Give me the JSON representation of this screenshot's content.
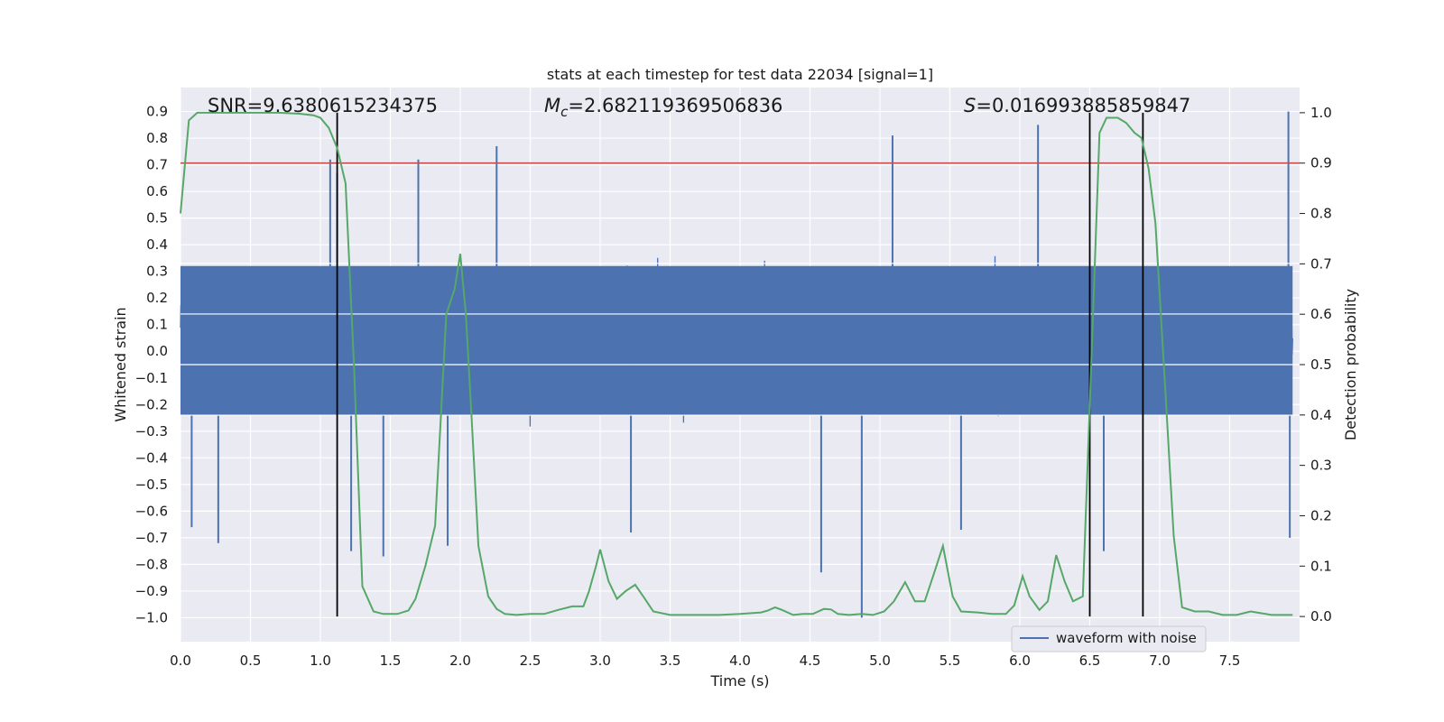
{
  "chart_data": {
    "type": "line",
    "title": "stats at each timestep for test data 22034 [signal=1]",
    "xlabel": "Time (s)",
    "ylabel": "Whitened strain",
    "y2label": "Detection probability",
    "xlim": [
      0.0,
      8.0
    ],
    "ylim": [
      -1.09,
      0.99
    ],
    "y2lim": [
      -0.05,
      1.05
    ],
    "xticks": [
      "0.0",
      "0.5",
      "1.0",
      "1.5",
      "2.0",
      "2.5",
      "3.0",
      "3.5",
      "4.0",
      "4.5",
      "5.0",
      "5.5",
      "6.0",
      "6.5",
      "7.0",
      "7.5"
    ],
    "yticks": [
      "0.9",
      "0.8",
      "0.7",
      "0.6",
      "0.5",
      "0.4",
      "0.3",
      "0.2",
      "0.1",
      "0.0",
      "-0.1",
      "-0.2",
      "-0.3",
      "-0.4",
      "-0.5",
      "-0.6",
      "-0.7",
      "-0.8",
      "-0.9",
      "-1.0"
    ],
    "y2ticks": [
      "1.0",
      "0.9",
      "0.8",
      "0.7",
      "0.6",
      "0.5",
      "0.4",
      "0.3",
      "0.2",
      "0.1",
      "0.0"
    ],
    "annotations": {
      "snr": "SNR=9.6380615234375",
      "mc_value": "=2.682119369506836",
      "s_value": "=0.016993885859847",
      "mc_symbol": "M",
      "mc_sub": "c",
      "s_symbol": "S"
    },
    "legend": {
      "label": "waveform with noise",
      "location": "lower-right"
    },
    "threshold": {
      "axis": "y2",
      "value": 0.9,
      "color": "#c44e52"
    },
    "vertical_lines": [
      1.12,
      6.5,
      6.88
    ],
    "waveform": {
      "name": "waveform with noise",
      "color": "#4c72b0",
      "duration_s": 7.95,
      "envelope_core": [
        -0.24,
        0.32
      ],
      "peaks": [
        {
          "t": 1.07,
          "v": 0.72
        },
        {
          "t": 1.12,
          "v": 0.67
        },
        {
          "t": 1.22,
          "v": -0.75
        },
        {
          "t": 1.45,
          "v": -0.77
        },
        {
          "t": 1.7,
          "v": 0.72
        },
        {
          "t": 1.91,
          "v": -0.73
        },
        {
          "t": 2.26,
          "v": 0.77
        },
        {
          "t": 3.22,
          "v": -0.68
        },
        {
          "t": 4.58,
          "v": -0.83
        },
        {
          "t": 4.87,
          "v": -1.0
        },
        {
          "t": 5.09,
          "v": 0.81
        },
        {
          "t": 6.13,
          "v": 0.85
        },
        {
          "t": 7.92,
          "v": 0.9
        },
        {
          "t": 7.93,
          "v": -0.7
        },
        {
          "t": 0.27,
          "v": -0.72
        },
        {
          "t": 0.08,
          "v": -0.66
        },
        {
          "t": 5.58,
          "v": -0.67
        },
        {
          "t": 6.6,
          "v": -0.75
        }
      ]
    },
    "detection_probability": {
      "name": "detection probability",
      "color": "#55a868",
      "x": [
        0.0,
        0.06,
        0.12,
        0.3,
        0.5,
        0.7,
        0.85,
        0.95,
        1.0,
        1.06,
        1.12,
        1.18,
        1.24,
        1.3,
        1.38,
        1.45,
        1.55,
        1.63,
        1.68,
        1.75,
        1.82,
        1.9,
        1.96,
        2.0,
        2.04,
        2.08,
        2.13,
        2.2,
        2.26,
        2.32,
        2.4,
        2.5,
        2.6,
        2.7,
        2.8,
        2.88,
        2.92,
        2.97,
        3.0,
        3.06,
        3.12,
        3.18,
        3.25,
        3.32,
        3.38,
        3.5,
        3.7,
        3.85,
        4.0,
        4.15,
        4.2,
        4.25,
        4.3,
        4.38,
        4.45,
        4.52,
        4.6,
        4.65,
        4.7,
        4.78,
        4.87,
        4.95,
        5.03,
        5.1,
        5.18,
        5.25,
        5.32,
        5.38,
        5.45,
        5.52,
        5.58,
        5.7,
        5.8,
        5.9,
        5.96,
        6.02,
        6.07,
        6.14,
        6.2,
        6.26,
        6.32,
        6.38,
        6.45,
        6.5,
        6.57,
        6.62,
        6.7,
        6.76,
        6.82,
        6.87,
        6.92,
        6.97,
        7.04,
        7.1,
        7.16,
        7.25,
        7.35,
        7.45,
        7.55,
        7.65,
        7.8,
        7.95
      ],
      "y": [
        0.8,
        0.985,
        1.0,
        1.0,
        1.0,
        1.0,
        0.998,
        0.995,
        0.99,
        0.97,
        0.93,
        0.86,
        0.5,
        0.06,
        0.01,
        0.005,
        0.005,
        0.012,
        0.035,
        0.1,
        0.18,
        0.6,
        0.65,
        0.72,
        0.6,
        0.4,
        0.14,
        0.04,
        0.015,
        0.005,
        0.003,
        0.005,
        0.005,
        0.013,
        0.02,
        0.02,
        0.05,
        0.1,
        0.133,
        0.07,
        0.035,
        0.05,
        0.063,
        0.035,
        0.01,
        0.003,
        0.003,
        0.003,
        0.005,
        0.008,
        0.012,
        0.018,
        0.013,
        0.003,
        0.005,
        0.005,
        0.015,
        0.014,
        0.005,
        0.003,
        0.005,
        0.003,
        0.01,
        0.03,
        0.068,
        0.03,
        0.03,
        0.08,
        0.14,
        0.04,
        0.01,
        0.008,
        0.005,
        0.005,
        0.022,
        0.08,
        0.04,
        0.013,
        0.03,
        0.122,
        0.07,
        0.03,
        0.04,
        0.42,
        0.96,
        0.99,
        0.99,
        0.98,
        0.96,
        0.95,
        0.89,
        0.78,
        0.45,
        0.16,
        0.018,
        0.01,
        0.01,
        0.003,
        0.003,
        0.01,
        0.003,
        0.003
      ]
    }
  }
}
